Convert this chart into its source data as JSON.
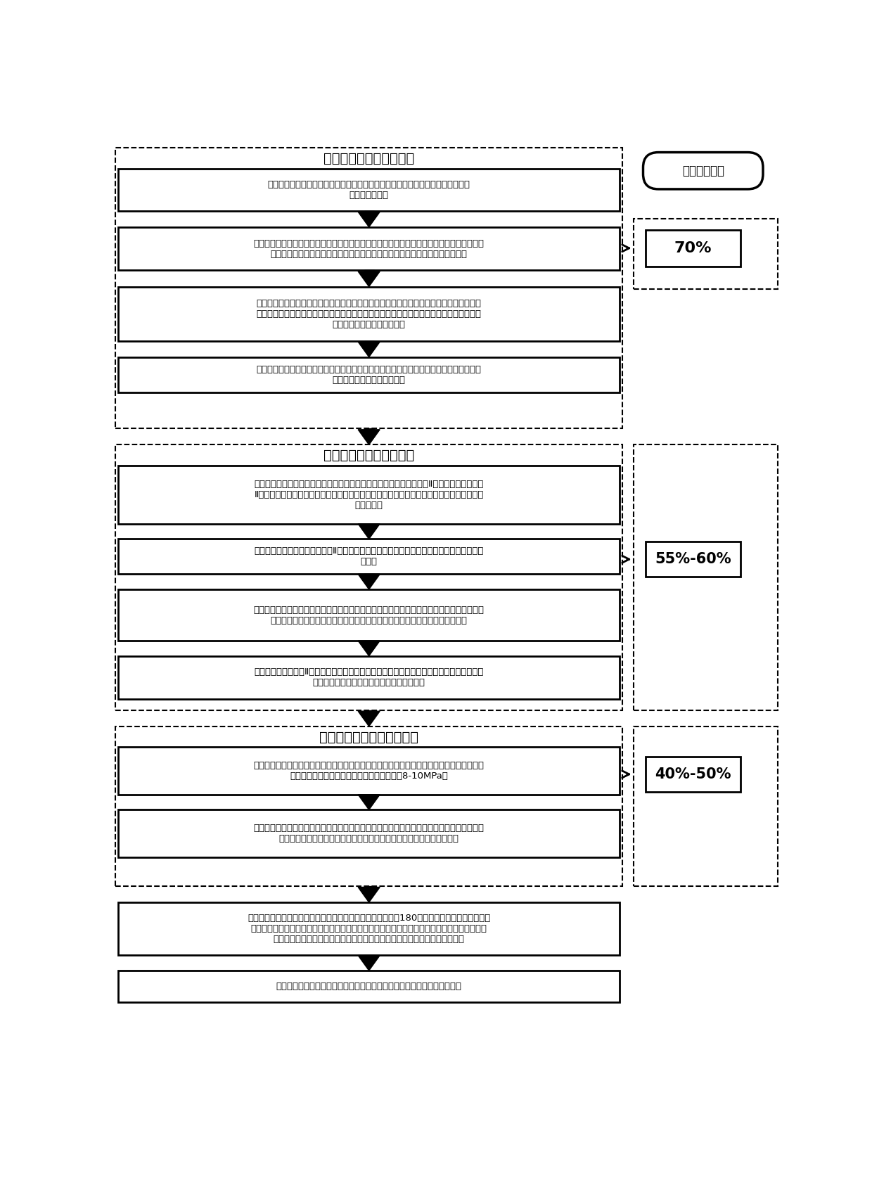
{
  "background_color": "#ffffff",
  "stage1_title": "第一阶段：进料压榨脱水",
  "stage2_title": "第二阶段：高压压榨脱水",
  "stage3_title": "第三阶段：超高压压榨脱水",
  "box1_text": "长行程油缸将各压滤板框往止推板侧推动，，定位自锁杆穿过限位阀体孔，形成封\n闭的污泥压滤腔",
  "box2_text": "气动球阀开启，高压进泥泵将泥浆泵入压滤腔体内，压滤板框往远离止推板方向（往左）运动\n，两个压滤板框之间相对位置固定，该压滤腔室的大小即为污泥初始体积大小；",
  "box3_text": "泥浆充满压滤腔室，推动第各腔室的左边一个压滤板框远离止推板方向运动，利用限位阀芯\n及定位自锁杆固定两个压滤板框，当污泥进入到最后一个腔室时，各个压滤板框均被定位自\n锁杆连成一体且位于最左端；",
  "box4_text": "经过一段时间的进料脱水，压滤腔室已经充实，泥浆已经无法进入，气动球阀关闭，停止进\n泥，第一阶段进料脱水结束；",
  "box5_text": "开始第二阶段脱水，长行程油缸开始工作，主推板上的限位阀芯将拉杆Ⅱ锁牢，油缸推动拉杆\nⅡ、主推板、副推板、力放大机构、短行程油缸往前运动，液压力通过副推板作用在压滤板框\n及污泥上；",
  "box6_text": "长行程油缸油路反向，带动拉杆Ⅱ、主推板、副推板、力放大机构、短行程油缸、压滤板框往\n回运动",
  "box7_text": "高压气泵开始工作，高压气体对紧贴在滤布上进行反吹，气体将紧贴在滤布上的泥饼吹开，同\n时将粘附在滤布上的污泥颗粒吹掉，清洗滤布，气体同时带走污泥内一定的水分",
  "box8_text": "长行程油缸带动拉杆Ⅱ、主推板、副推板、力放大机构、短行程油缸、压滤板框继续往前运动\n，经过一段时间的压榨脱水，第二级脱水结束",
  "box9_text": "进入第三级超高压脱水阶段。短行程油缸开始工作，推动力的放大机构、副推板往前运动，对\n污泥进行进一步的压榨，此时污泥压榨压力为8-10MPa；",
  "box10_text": "在机械压榨的同时，高压气体进入，将污泥内通过机械压榨难以脱出的水分更多的通过水蒸气\n带出，待出水阀几乎没有出水时，第三阶段压榨停止，整个脱水过程结束",
  "box11_text": "卸泥阶段，气缸带动齿条运动，带动转向齿轮及限位阀芯旋转180，短行程油缸及长行程油缸油\n路反向，带动副推板、力放大机构、主推板往回运动，拉板机构通过拉动压滤板框往左运动，在\n弹性自锁作用下，污泥从滤板之间的空隙掉到装置的下方的输送机构输送出去",
  "box12_text": "卸泥完毕后，油缸将所有的压滤板框又重新推送到最左端，进入下一个循环",
  "label_text": "脱水后含水率",
  "pct1_text": "70%",
  "pct2_text": "55%-60%",
  "pct3_text": "40%-50%"
}
